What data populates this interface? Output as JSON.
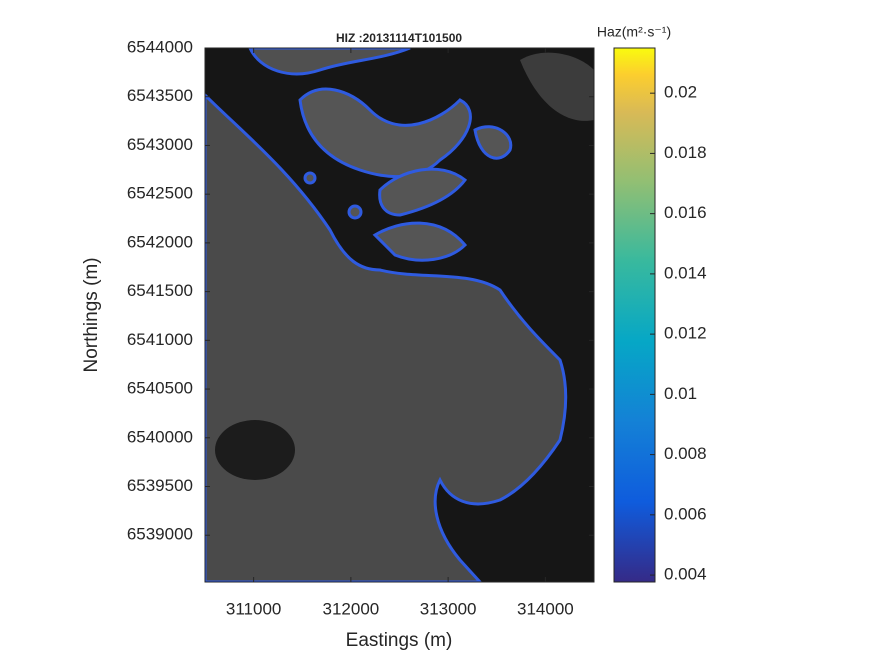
{
  "chart_data": {
    "type": "map",
    "title": "HIZ :20131114T101500",
    "xlabel": "Eastings (m)",
    "ylabel": "Northings (m)",
    "xlim": [
      310500,
      314500
    ],
    "xticks": [
      311000,
      312000,
      313000,
      314000
    ],
    "ylim": [
      6538520,
      6544000
    ],
    "yticks": [
      6539000,
      6539500,
      6540000,
      6540500,
      6541000,
      6541500,
      6542000,
      6542500,
      6543000,
      6543500,
      6544000
    ],
    "colorbar": {
      "label": "Haz(m²·s⁻¹)",
      "lim": [
        0.00377,
        0.0215
      ],
      "ticks": [
        0.004,
        0.006,
        0.008,
        0.01,
        0.012,
        0.014,
        0.016,
        0.018,
        0.02
      ]
    }
  }
}
